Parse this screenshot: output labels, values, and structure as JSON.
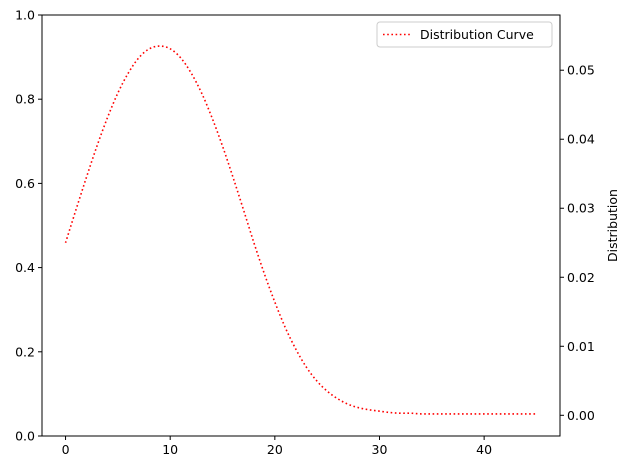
{
  "chart_data": {
    "type": "line",
    "title": "",
    "xlabel": "",
    "ylabel_left": "",
    "ylabel_right": "Distribution",
    "xlim": [
      -2.25,
      47.25
    ],
    "ylim_left": [
      0,
      1
    ],
    "ylim_right": [
      -0.003,
      0.058
    ],
    "x_ticks": [
      0,
      10,
      20,
      30,
      40
    ],
    "y_left_ticks": [
      0.0,
      0.2,
      0.4,
      0.6,
      0.8,
      1.0
    ],
    "y_left_tick_labels": [
      "0.0",
      "0.2",
      "0.4",
      "0.6",
      "0.8",
      "1.0"
    ],
    "y_right_ticks": [
      0.0,
      0.01,
      0.02,
      0.03,
      0.04,
      0.05
    ],
    "y_right_tick_labels": [
      "0.00",
      "0.01",
      "0.02",
      "0.03",
      "0.04",
      "0.05"
    ],
    "grid": false,
    "legend_position": "top-right",
    "series": [
      {
        "name": "Distribution Curve",
        "axis": "right",
        "color": "#ff0000",
        "line_style": "dotted",
        "x": [
          0,
          1,
          2,
          3,
          4,
          5,
          6,
          7,
          8,
          9,
          10,
          11,
          12,
          13,
          14,
          15,
          16,
          17,
          18,
          19,
          20,
          21,
          22,
          23,
          24,
          25,
          26,
          27,
          28,
          29,
          30,
          31,
          32,
          33,
          34,
          35,
          36,
          37,
          38,
          39,
          40,
          41,
          42,
          43,
          44,
          45
        ],
        "y": [
          0.025,
          0.0298,
          0.0345,
          0.039,
          0.0431,
          0.0467,
          0.0496,
          0.0518,
          0.0531,
          0.0535,
          0.0531,
          0.0518,
          0.0496,
          0.0467,
          0.0431,
          0.039,
          0.0345,
          0.0298,
          0.025,
          0.0205,
          0.0164,
          0.0127,
          0.0096,
          0.007,
          0.005,
          0.0035,
          0.0024,
          0.0016,
          0.0011,
          0.0008,
          0.0006,
          0.0004,
          0.0003,
          0.0003,
          0.0002,
          0.0002,
          0.0002,
          0.0002,
          0.0002,
          0.0002,
          0.0002,
          0.0002,
          0.0002,
          0.0002,
          0.0002,
          0.0002
        ]
      }
    ]
  }
}
